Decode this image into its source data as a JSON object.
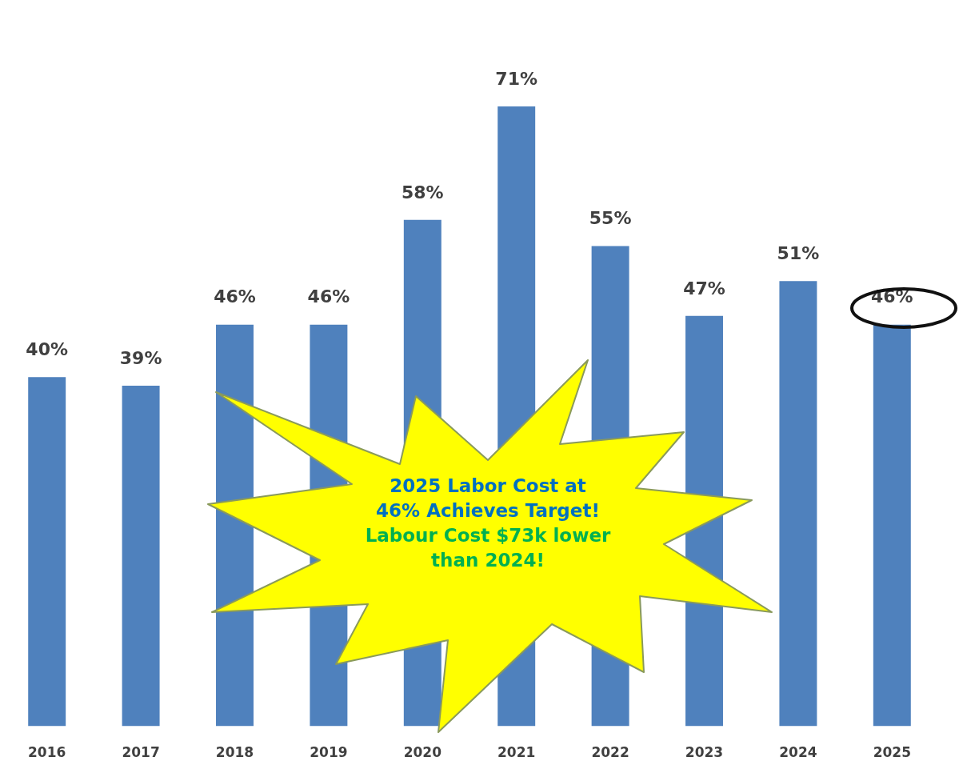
{
  "chart_data": {
    "type": "bar",
    "categories": [
      "2016",
      "2017",
      "2018",
      "2019",
      "2020",
      "2021",
      "2022",
      "2023",
      "2024",
      "2025"
    ],
    "values": [
      40,
      39,
      46,
      46,
      58,
      71,
      55,
      47,
      51,
      46
    ],
    "value_labels": [
      "40%",
      "39%",
      "46%",
      "46%",
      "58%",
      "71%",
      "55%",
      "47%",
      "51%",
      "46%"
    ],
    "color": "#4f81bd",
    "annotations": [
      "2025 Labor Cost at 46% Achieves Target!",
      "Labour Cost $73k lower than 2024!"
    ]
  }
}
